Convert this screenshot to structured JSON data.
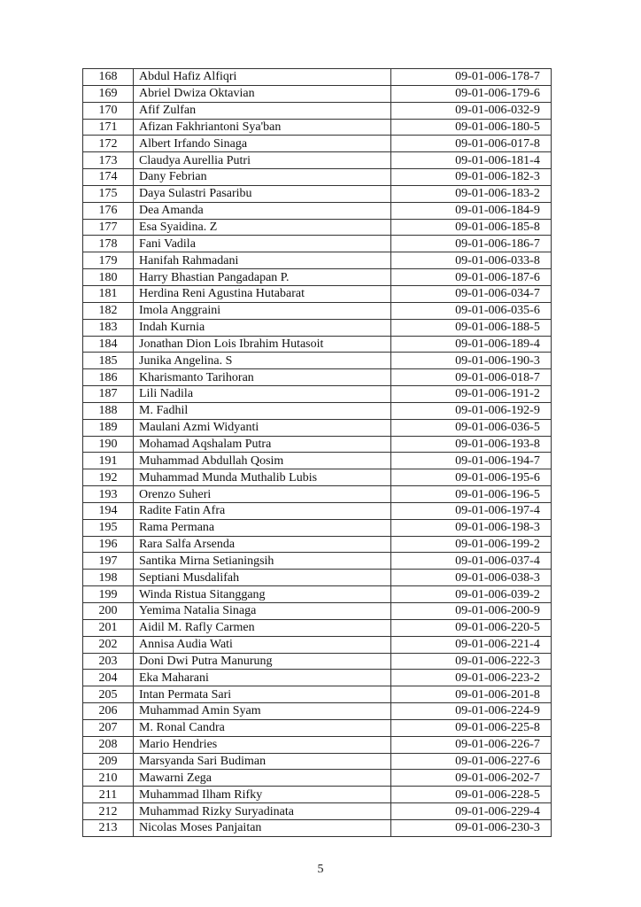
{
  "rows": [
    {
      "no": "168",
      "name": "Abdul Hafiz Alfiqri",
      "code": "09-01-006-178-7"
    },
    {
      "no": "169",
      "name": "Abriel Dwiza Oktavian",
      "code": "09-01-006-179-6"
    },
    {
      "no": "170",
      "name": "Afif Zulfan",
      "code": "09-01-006-032-9"
    },
    {
      "no": "171",
      "name": "Afizan Fakhriantoni Sya'ban",
      "code": "09-01-006-180-5"
    },
    {
      "no": "172",
      "name": "Albert Irfando Sinaga",
      "code": "09-01-006-017-8"
    },
    {
      "no": "173",
      "name": "Claudya Aurellia Putri",
      "code": "09-01-006-181-4"
    },
    {
      "no": "174",
      "name": "Dany Febrian",
      "code": "09-01-006-182-3"
    },
    {
      "no": "175",
      "name": "Daya Sulastri Pasaribu",
      "code": "09-01-006-183-2"
    },
    {
      "no": "176",
      "name": "Dea Amanda",
      "code": "09-01-006-184-9"
    },
    {
      "no": "177",
      "name": "Esa Syaidina. Z",
      "code": "09-01-006-185-8"
    },
    {
      "no": "178",
      "name": "Fani Vadila",
      "code": "09-01-006-186-7"
    },
    {
      "no": "179",
      "name": "Hanifah Rahmadani",
      "code": "09-01-006-033-8"
    },
    {
      "no": "180",
      "name": "Harry Bhastian Pangadapan P.",
      "code": "09-01-006-187-6"
    },
    {
      "no": "181",
      "name": "Herdina Reni Agustina Hutabarat",
      "code": "09-01-006-034-7"
    },
    {
      "no": "182",
      "name": "Imola Anggraini",
      "code": "09-01-006-035-6"
    },
    {
      "no": "183",
      "name": "Indah Kurnia",
      "code": "09-01-006-188-5"
    },
    {
      "no": "184",
      "name": "Jonathan Dion Lois Ibrahim Hutasoit",
      "code": "09-01-006-189-4"
    },
    {
      "no": "185",
      "name": "Junika Angelina. S",
      "code": "09-01-006-190-3"
    },
    {
      "no": "186",
      "name": "Kharismanto Tarihoran",
      "code": "09-01-006-018-7"
    },
    {
      "no": "187",
      "name": "Lili Nadila",
      "code": "09-01-006-191-2"
    },
    {
      "no": "188",
      "name": "M. Fadhil",
      "code": "09-01-006-192-9"
    },
    {
      "no": "189",
      "name": "Maulani Azmi Widyanti",
      "code": "09-01-006-036-5"
    },
    {
      "no": "190",
      "name": "Mohamad Aqshalam Putra",
      "code": "09-01-006-193-8"
    },
    {
      "no": "191",
      "name": "Muhammad Abdullah Qosim",
      "code": "09-01-006-194-7"
    },
    {
      "no": "192",
      "name": "Muhammad Munda Muthalib Lubis",
      "code": "09-01-006-195-6"
    },
    {
      "no": "193",
      "name": "Orenzo Suheri",
      "code": "09-01-006-196-5"
    },
    {
      "no": "194",
      "name": "Radite Fatin Afra",
      "code": "09-01-006-197-4"
    },
    {
      "no": "195",
      "name": "Rama Permana",
      "code": "09-01-006-198-3"
    },
    {
      "no": "196",
      "name": "Rara Salfa Arsenda",
      "code": "09-01-006-199-2"
    },
    {
      "no": "197",
      "name": "Santika Mirna Setianingsih",
      "code": "09-01-006-037-4"
    },
    {
      "no": "198",
      "name": "Septiani Musdalifah",
      "code": "09-01-006-038-3"
    },
    {
      "no": "199",
      "name": "Winda Ristua Sitanggang",
      "code": "09-01-006-039-2"
    },
    {
      "no": "200",
      "name": "Yemima Natalia Sinaga",
      "code": "09-01-006-200-9"
    },
    {
      "no": "201",
      "name": "Aidil M. Rafly Carmen",
      "code": "09-01-006-220-5"
    },
    {
      "no": "202",
      "name": "Annisa Audia Wati",
      "code": "09-01-006-221-4"
    },
    {
      "no": "203",
      "name": "Doni Dwi Putra Manurung",
      "code": "09-01-006-222-3"
    },
    {
      "no": "204",
      "name": "Eka Maharani",
      "code": "09-01-006-223-2"
    },
    {
      "no": "205",
      "name": "Intan Permata Sari",
      "code": "09-01-006-201-8"
    },
    {
      "no": "206",
      "name": "Muhammad Amin Syam",
      "code": "09-01-006-224-9"
    },
    {
      "no": "207",
      "name": "M. Ronal Candra",
      "code": "09-01-006-225-8"
    },
    {
      "no": "208",
      "name": "Mario Hendries",
      "code": "09-01-006-226-7"
    },
    {
      "no": "209",
      "name": "Marsyanda Sari Budiman",
      "code": "09-01-006-227-6"
    },
    {
      "no": "210",
      "name": "Mawarni Zega",
      "code": "09-01-006-202-7"
    },
    {
      "no": "211",
      "name": "Muhammad Ilham Rifky",
      "code": "09-01-006-228-5"
    },
    {
      "no": "212",
      "name": "Muhammad Rizky Suryadinata",
      "code": "09-01-006-229-4"
    },
    {
      "no": "213",
      "name": "Nicolas Moses Panjaitan",
      "code": "09-01-006-230-3"
    }
  ],
  "page_number": "5"
}
